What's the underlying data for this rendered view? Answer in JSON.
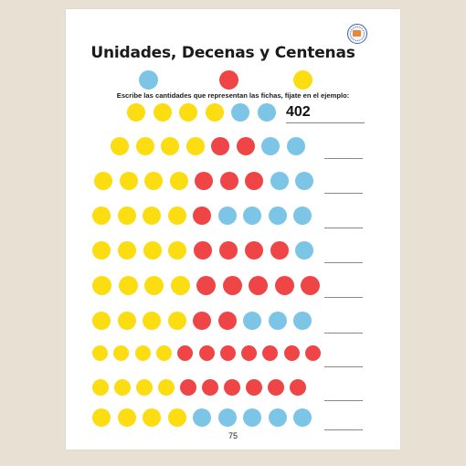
{
  "title": "Unidades, Decenas y Centenas",
  "instruction": "Escribe las cantidades que representan las fichas, fíjate en el ejemplo:",
  "colors": {
    "yellow": "#fbdd12",
    "red": "#ef4546",
    "blue": "#7cc5e6"
  },
  "key": [
    "blue",
    "red",
    "yellow"
  ],
  "rows": [
    {
      "dots": [
        "yellow",
        "yellow",
        "yellow",
        "yellow",
        "blue",
        "blue"
      ],
      "answer": "402"
    },
    {
      "dots": [
        "yellow",
        "yellow",
        "yellow",
        "yellow",
        "red",
        "red",
        "blue",
        "blue"
      ],
      "answer": ""
    },
    {
      "dots": [
        "yellow",
        "yellow",
        "yellow",
        "yellow",
        "red",
        "red",
        "red",
        "blue",
        "blue"
      ],
      "answer": ""
    },
    {
      "dots": [
        "yellow",
        "yellow",
        "yellow",
        "yellow",
        "red",
        "blue",
        "blue",
        "blue",
        "blue"
      ],
      "answer": ""
    },
    {
      "dots": [
        "yellow",
        "yellow",
        "yellow",
        "yellow",
        "red",
        "red",
        "red",
        "red",
        "blue"
      ],
      "answer": ""
    },
    {
      "dots": [
        "yellow",
        "yellow",
        "yellow",
        "yellow",
        "red",
        "red",
        "red",
        "red",
        "red"
      ],
      "answer": ""
    },
    {
      "dots": [
        "yellow",
        "yellow",
        "yellow",
        "yellow",
        "red",
        "red",
        "blue",
        "blue",
        "blue"
      ],
      "answer": ""
    },
    {
      "dots": [
        "yellow",
        "yellow",
        "yellow",
        "yellow",
        "red",
        "red",
        "red",
        "red",
        "red",
        "red",
        "red"
      ],
      "answer": ""
    },
    {
      "dots": [
        "yellow",
        "yellow",
        "yellow",
        "yellow",
        "red",
        "red",
        "red",
        "red",
        "red",
        "red"
      ],
      "answer": ""
    },
    {
      "dots": [
        "yellow",
        "yellow",
        "yellow",
        "yellow",
        "blue",
        "blue",
        "blue",
        "blue",
        "blue"
      ],
      "answer": ""
    }
  ],
  "page_number": "75"
}
